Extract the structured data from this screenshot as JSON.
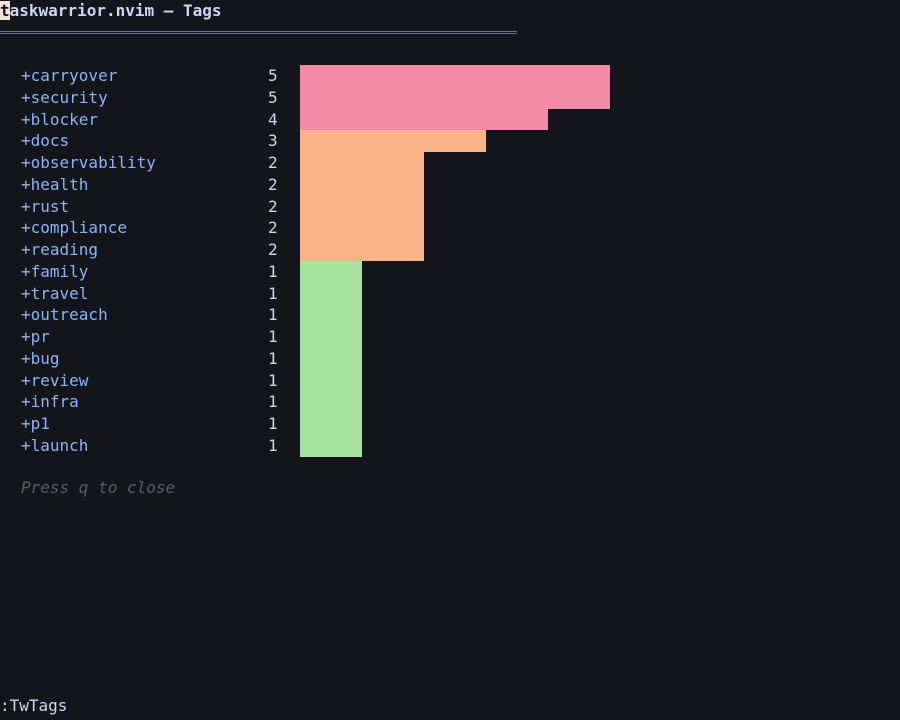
{
  "window": {
    "title_cursor_char": "t",
    "title_rest": "askwarrior.nvim — Tags"
  },
  "tags": [
    {
      "label": "+carryover",
      "count": "5",
      "value": 5,
      "color": "#f38ba8"
    },
    {
      "label": "+security",
      "count": "5",
      "value": 5,
      "color": "#f38ba8"
    },
    {
      "label": "+blocker",
      "count": "4",
      "value": 4,
      "color": "#f38ba8"
    },
    {
      "label": "+docs",
      "count": "3",
      "value": 3,
      "color": "#fab387"
    },
    {
      "label": "+observability",
      "count": "2",
      "value": 2,
      "color": "#fab387"
    },
    {
      "label": "+health",
      "count": "2",
      "value": 2,
      "color": "#fab387"
    },
    {
      "label": "+rust",
      "count": "2",
      "value": 2,
      "color": "#fab387"
    },
    {
      "label": "+compliance",
      "count": "2",
      "value": 2,
      "color": "#fab387"
    },
    {
      "label": "+reading",
      "count": "2",
      "value": 2,
      "color": "#fab387"
    },
    {
      "label": "+family",
      "count": "1",
      "value": 1,
      "color": "#a6e3a1"
    },
    {
      "label": "+travel",
      "count": "1",
      "value": 1,
      "color": "#a6e3a1"
    },
    {
      "label": "+outreach",
      "count": "1",
      "value": 1,
      "color": "#a6e3a1"
    },
    {
      "label": "+pr",
      "count": "1",
      "value": 1,
      "color": "#a6e3a1"
    },
    {
      "label": "+bug",
      "count": "1",
      "value": 1,
      "color": "#a6e3a1"
    },
    {
      "label": "+review",
      "count": "1",
      "value": 1,
      "color": "#a6e3a1"
    },
    {
      "label": "+infra",
      "count": "1",
      "value": 1,
      "color": "#a6e3a1"
    },
    {
      "label": "+p1",
      "count": "1",
      "value": 1,
      "color": "#a6e3a1"
    },
    {
      "label": "+launch",
      "count": "1",
      "value": 1,
      "color": "#a6e3a1"
    }
  ],
  "hint": "Press q to close",
  "cmdline": ":TwTags"
}
